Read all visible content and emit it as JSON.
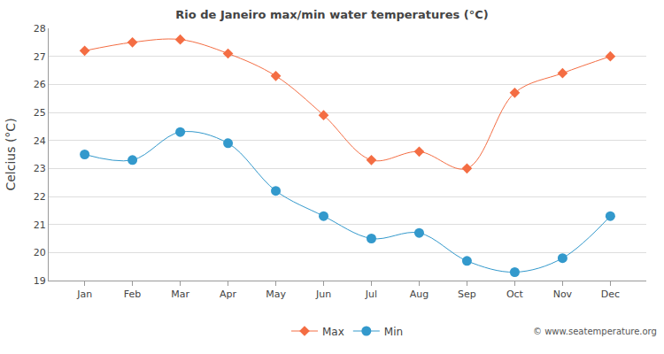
{
  "chart_data": {
    "type": "line",
    "title": "Rio de Janeiro max/min water temperatures (°C)",
    "y_label": "Celcius (°C)",
    "categories": [
      "Jan",
      "Feb",
      "Mar",
      "Apr",
      "May",
      "Jun",
      "Jul",
      "Aug",
      "Sep",
      "Oct",
      "Nov",
      "Dec"
    ],
    "series": [
      {
        "name": "Max",
        "color": "#f46d43",
        "marker": "diamond",
        "line_style": "solid",
        "values": [
          27.2,
          27.5,
          27.6,
          27.1,
          26.3,
          24.9,
          23.3,
          23.6,
          23.0,
          25.7,
          26.4,
          27.0
        ]
      },
      {
        "name": "Min",
        "color": "#3399cc",
        "marker": "circle",
        "line_style": "solid",
        "values": [
          23.5,
          23.3,
          24.3,
          23.9,
          22.2,
          21.3,
          20.5,
          20.7,
          19.7,
          19.3,
          19.8,
          21.3
        ]
      }
    ],
    "ylim": [
      19,
      28
    ],
    "yticks": [
      19,
      20,
      21,
      22,
      23,
      24,
      25,
      26,
      27,
      28
    ],
    "grid": true,
    "legend": "bottom",
    "annotations": [
      {
        "text": "© www.seatemperature.org"
      }
    ]
  }
}
